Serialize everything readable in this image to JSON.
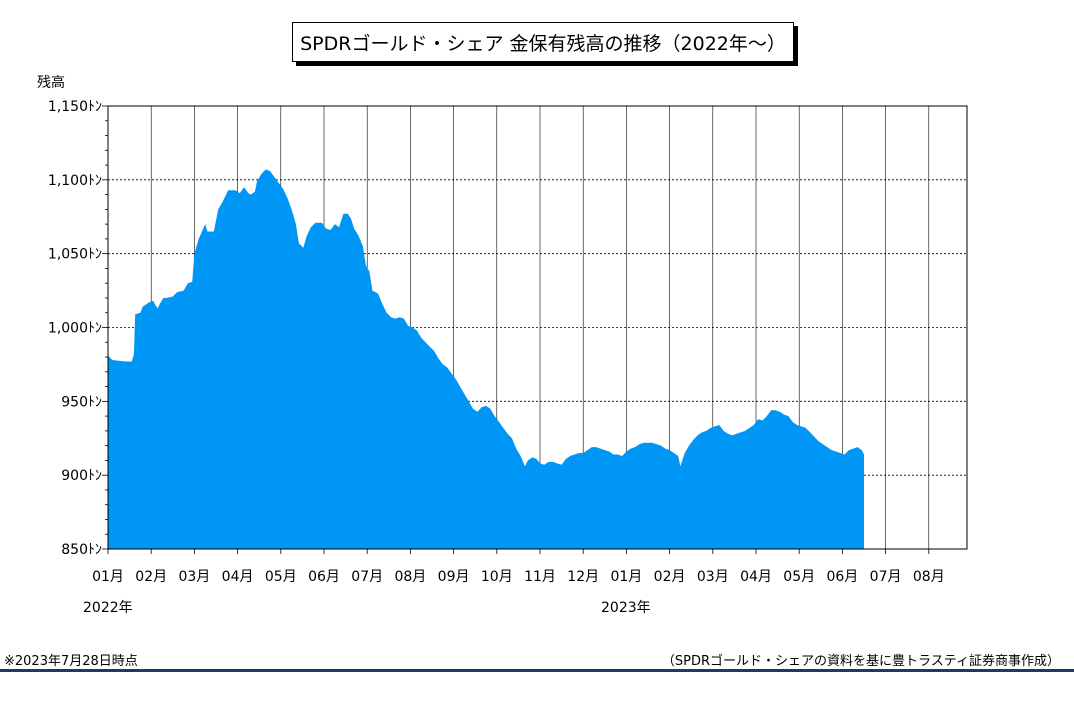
{
  "title": "SPDRゴールド・シェア 金保有残高の推移（2022年〜）",
  "footnote": "※2023年7月28日時点",
  "source": "（SPDRゴールド・シェアの資料を基に豊トラスティ証券商事作成）",
  "colors": {
    "fill": "#0096f5",
    "grid": "#000000",
    "footer": "#1f3864"
  },
  "chart_data": {
    "type": "area",
    "ylabel": "残高",
    "ylim": [
      850,
      1150
    ],
    "yticks": [
      850,
      900,
      950,
      1000,
      1050,
      1100,
      1150
    ],
    "ytick_labels": [
      "850ﾄﾝ",
      "900ﾄﾝ",
      "950ﾄﾝ",
      "1,000ﾄﾝ",
      "1,050ﾄﾝ",
      "1,100ﾄﾝ",
      "1,150ﾄﾝ"
    ],
    "months": [
      "01月",
      "02月",
      "03月",
      "04月",
      "05月",
      "06月",
      "07月",
      "08月",
      "09月",
      "10月",
      "11月",
      "12月",
      "01月",
      "02月",
      "03月",
      "04月",
      "05月",
      "06月",
      "07月",
      "08月"
    ],
    "years": [
      {
        "label": "2022年",
        "month_index": 0
      },
      {
        "label": "2023年",
        "month_index": 12
      }
    ],
    "grid": "horizontal dashed, vertical solid",
    "x_unit": "months since 2022-01-01",
    "series": [
      {
        "values": [
          [
            0.0,
            981
          ],
          [
            0.1,
            978
          ],
          [
            0.4,
            977
          ],
          [
            0.55,
            977
          ],
          [
            0.6,
            982
          ],
          [
            0.63,
            1009
          ],
          [
            0.75,
            1010
          ],
          [
            0.8,
            1014
          ],
          [
            0.95,
            1017
          ],
          [
            1.05,
            1018
          ],
          [
            1.1,
            1015
          ],
          [
            1.15,
            1013
          ],
          [
            1.2,
            1016
          ],
          [
            1.28,
            1020
          ],
          [
            1.35,
            1020
          ],
          [
            1.5,
            1021
          ],
          [
            1.6,
            1024
          ],
          [
            1.75,
            1025
          ],
          [
            1.85,
            1030
          ],
          [
            1.95,
            1031
          ],
          [
            2.0,
            1050
          ],
          [
            2.1,
            1060
          ],
          [
            2.25,
            1070
          ],
          [
            2.3,
            1065
          ],
          [
            2.45,
            1065
          ],
          [
            2.55,
            1080
          ],
          [
            2.65,
            1085
          ],
          [
            2.78,
            1093
          ],
          [
            2.95,
            1093
          ],
          [
            3.05,
            1091
          ],
          [
            3.15,
            1095
          ],
          [
            3.25,
            1091
          ],
          [
            3.3,
            1090
          ],
          [
            3.4,
            1092
          ],
          [
            3.45,
            1099
          ],
          [
            3.55,
            1104
          ],
          [
            3.65,
            1107
          ],
          [
            3.75,
            1106
          ],
          [
            3.85,
            1102
          ],
          [
            3.95,
            1098
          ],
          [
            4.05,
            1094
          ],
          [
            4.15,
            1088
          ],
          [
            4.25,
            1080
          ],
          [
            4.35,
            1070
          ],
          [
            4.42,
            1057
          ],
          [
            4.52,
            1054
          ],
          [
            4.6,
            1062
          ],
          [
            4.7,
            1068
          ],
          [
            4.8,
            1071
          ],
          [
            4.95,
            1071
          ],
          [
            5.05,
            1067
          ],
          [
            5.15,
            1066
          ],
          [
            5.25,
            1070
          ],
          [
            5.35,
            1068
          ],
          [
            5.45,
            1077
          ],
          [
            5.55,
            1077
          ],
          [
            5.62,
            1074
          ],
          [
            5.7,
            1067
          ],
          [
            5.8,
            1062
          ],
          [
            5.9,
            1055
          ],
          [
            5.97,
            1042
          ],
          [
            6.05,
            1038
          ],
          [
            6.12,
            1025
          ],
          [
            6.25,
            1023
          ],
          [
            6.35,
            1016
          ],
          [
            6.45,
            1010
          ],
          [
            6.55,
            1007
          ],
          [
            6.65,
            1006
          ],
          [
            6.75,
            1007
          ],
          [
            6.85,
            1006
          ],
          [
            6.95,
            1001
          ],
          [
            7.05,
            1000
          ],
          [
            7.15,
            998
          ],
          [
            7.25,
            993
          ],
          [
            7.35,
            990
          ],
          [
            7.45,
            987
          ],
          [
            7.55,
            984
          ],
          [
            7.65,
            979
          ],
          [
            7.75,
            975
          ],
          [
            7.85,
            973
          ],
          [
            7.95,
            969
          ],
          [
            8.05,
            965
          ],
          [
            8.15,
            960
          ],
          [
            8.25,
            955
          ],
          [
            8.35,
            950
          ],
          [
            8.45,
            945
          ],
          [
            8.55,
            943
          ],
          [
            8.65,
            946
          ],
          [
            8.75,
            947
          ],
          [
            8.85,
            945
          ],
          [
            8.95,
            940
          ],
          [
            9.05,
            936
          ],
          [
            9.15,
            932
          ],
          [
            9.25,
            928
          ],
          [
            9.35,
            925
          ],
          [
            9.45,
            918
          ],
          [
            9.55,
            913
          ],
          [
            9.65,
            906
          ],
          [
            9.72,
            910
          ],
          [
            9.82,
            912
          ],
          [
            9.92,
            911
          ],
          [
            10.0,
            908
          ],
          [
            10.1,
            907
          ],
          [
            10.2,
            909
          ],
          [
            10.3,
            909
          ],
          [
            10.4,
            908
          ],
          [
            10.5,
            907
          ],
          [
            10.6,
            911
          ],
          [
            10.7,
            913
          ],
          [
            10.8,
            914
          ],
          [
            10.9,
            915
          ],
          [
            11.0,
            915
          ],
          [
            11.1,
            917
          ],
          [
            11.2,
            919
          ],
          [
            11.3,
            919
          ],
          [
            11.4,
            918
          ],
          [
            11.5,
            917
          ],
          [
            11.6,
            916
          ],
          [
            11.7,
            914
          ],
          [
            11.8,
            914
          ],
          [
            11.9,
            913
          ],
          [
            12.0,
            916
          ],
          [
            12.1,
            918
          ],
          [
            12.2,
            919
          ],
          [
            12.3,
            921
          ],
          [
            12.4,
            922
          ],
          [
            12.5,
            922
          ],
          [
            12.6,
            922
          ],
          [
            12.7,
            921
          ],
          [
            12.8,
            920
          ],
          [
            12.9,
            918
          ],
          [
            13.0,
            917
          ],
          [
            13.1,
            915
          ],
          [
            13.2,
            913
          ],
          [
            13.25,
            906
          ],
          [
            13.35,
            915
          ],
          [
            13.45,
            920
          ],
          [
            13.55,
            924
          ],
          [
            13.65,
            927
          ],
          [
            13.75,
            929
          ],
          [
            13.85,
            930
          ],
          [
            13.95,
            932
          ],
          [
            14.05,
            933
          ],
          [
            14.15,
            934
          ],
          [
            14.25,
            930
          ],
          [
            14.35,
            928
          ],
          [
            14.45,
            927
          ],
          [
            14.55,
            928
          ],
          [
            14.65,
            929
          ],
          [
            14.75,
            930
          ],
          [
            14.85,
            932
          ],
          [
            14.95,
            934
          ],
          [
            15.05,
            938
          ],
          [
            15.15,
            937
          ],
          [
            15.25,
            940
          ],
          [
            15.35,
            944
          ],
          [
            15.45,
            944
          ],
          [
            15.55,
            943
          ],
          [
            15.65,
            941
          ],
          [
            15.75,
            940
          ],
          [
            15.85,
            936
          ],
          [
            15.95,
            934
          ],
          [
            16.05,
            933
          ],
          [
            16.15,
            932
          ],
          [
            16.25,
            929
          ],
          [
            16.35,
            926
          ],
          [
            16.45,
            923
          ],
          [
            16.55,
            921
          ],
          [
            16.65,
            919
          ],
          [
            16.75,
            917
          ],
          [
            16.85,
            916
          ],
          [
            16.95,
            915
          ],
          [
            17.05,
            914
          ],
          [
            17.15,
            917
          ],
          [
            17.25,
            918
          ],
          [
            17.35,
            919
          ],
          [
            17.45,
            917
          ],
          [
            17.5,
            914
          ]
        ]
      }
    ]
  }
}
